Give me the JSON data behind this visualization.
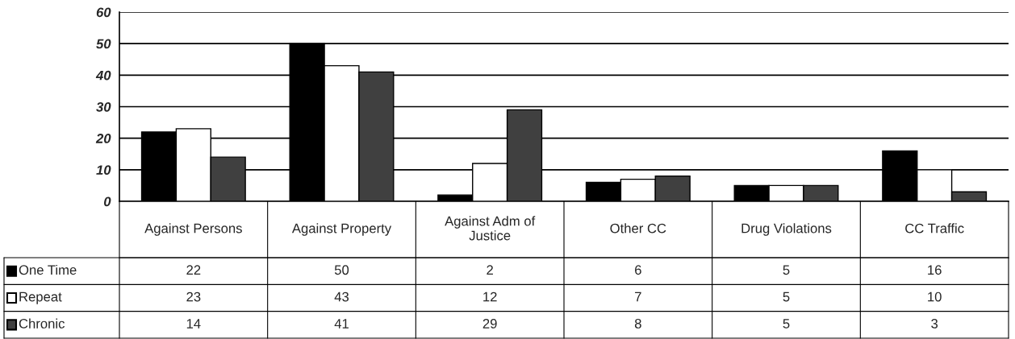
{
  "chart_data": {
    "type": "bar",
    "categories": [
      "Against Persons",
      "Against Property",
      "Against Adm of Justice",
      "Other CC",
      "Drug Violations",
      "CC Traffic"
    ],
    "series": [
      {
        "name": "One Time",
        "color": "#000000",
        "values": [
          22,
          50,
          2,
          6,
          5,
          16
        ]
      },
      {
        "name": "Repeat",
        "color": "#ffffff",
        "values": [
          23,
          43,
          12,
          7,
          5,
          10
        ]
      },
      {
        "name": "Chronic",
        "color": "#404040",
        "values": [
          14,
          41,
          29,
          8,
          5,
          3
        ]
      }
    ],
    "ylim": [
      0,
      60
    ],
    "yticks": [
      0,
      10,
      20,
      30,
      40,
      50,
      60
    ],
    "grid": "y",
    "data_labels": true,
    "legend": "bottom"
  }
}
